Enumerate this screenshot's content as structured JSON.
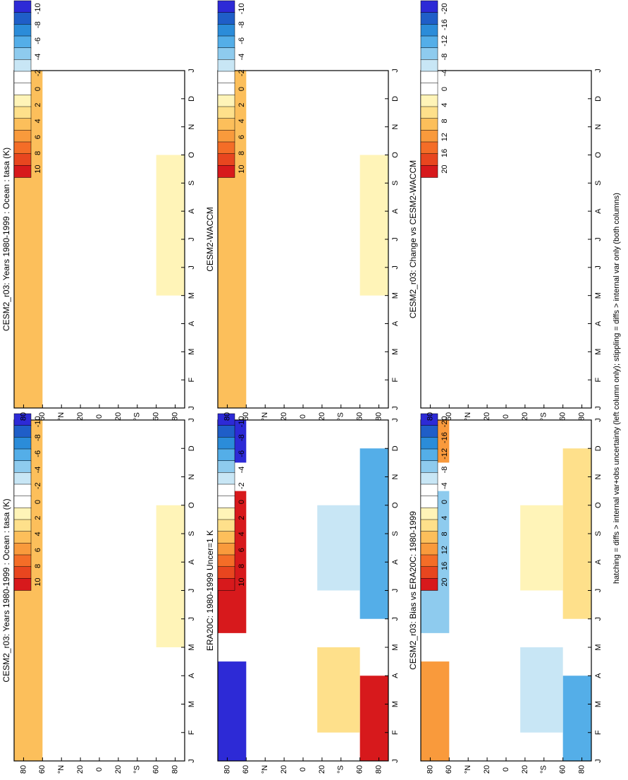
{
  "footer": "hatching = diffs > internal var+obs uncertainty (left column only); stippling = diffs > internal var only (both columns)",
  "chart_data": [
    {
      "type": "heatmap",
      "title": "CESM2_r03: Years 1980-1999 : Ocean : tasa (K)",
      "x_tick_labels": [
        "J",
        "F",
        "M",
        "A",
        "M",
        "J",
        "J",
        "A",
        "S",
        "O",
        "N",
        "D",
        "J"
      ],
      "y_tick_labels": [
        "80",
        "60",
        "°N",
        "20",
        "0",
        "20",
        "°S",
        "60",
        "80"
      ],
      "legend": {
        "tick_labels": [
          "10",
          "8",
          "6",
          "4",
          "2",
          "0",
          "-2",
          "-4",
          "-6",
          "-8",
          "-10"
        ]
      },
      "zones": [
        {
          "lat": [
            60,
            90
          ],
          "months": [
            [
              0,
              12
            ]
          ],
          "value": 4
        },
        {
          "lat": [
            -90,
            -60
          ],
          "months": [
            [
              4,
              9
            ]
          ],
          "value": 2
        }
      ]
    },
    {
      "type": "heatmap",
      "title": "CESM2_r03: Years 1980-1999 : Ocean : tasa (K)",
      "x_tick_labels": [
        "J",
        "F",
        "M",
        "A",
        "M",
        "J",
        "J",
        "A",
        "S",
        "O",
        "N",
        "D",
        "J"
      ],
      "y_tick_labels": [
        "80",
        "60",
        "°N",
        "20",
        "0",
        "20",
        "°S",
        "60",
        "80"
      ],
      "legend": {
        "tick_labels": [
          "10",
          "8",
          "6",
          "4",
          "2",
          "0",
          "-2",
          "-4",
          "-6",
          "-8",
          "-10"
        ]
      },
      "zones": [
        {
          "lat": [
            60,
            90
          ],
          "months": [
            [
              0,
              12
            ]
          ],
          "value": 4
        },
        {
          "lat": [
            -90,
            -60
          ],
          "months": [
            [
              4,
              9
            ]
          ],
          "value": 2
        }
      ]
    },
    {
      "type": "heatmap",
      "title": "ERA20C: 1980-1999 Uncer=1 K",
      "x_tick_labels": [
        "J",
        "F",
        "M",
        "A",
        "M",
        "J",
        "J",
        "A",
        "S",
        "O",
        "N",
        "D",
        "J"
      ],
      "y_tick_labels": [
        "80",
        "60",
        "°N",
        "20",
        "0",
        "20",
        "°S",
        "60",
        "80"
      ],
      "legend": {
        "tick_labels": [
          "10",
          "8",
          "6",
          "4",
          "2",
          "0",
          "-2",
          "-4",
          "-6",
          "-8",
          "-10"
        ]
      },
      "zones": [
        {
          "lat": [
            60,
            90
          ],
          "months": [
            [
              0,
              3.5
            ],
            [
              10.5,
              12
            ]
          ],
          "value": -9
        },
        {
          "lat": [
            60,
            90
          ],
          "months": [
            [
              4.5,
              9.5
            ]
          ],
          "value": 9
        },
        {
          "lat": [
            -90,
            -60
          ],
          "months": [
            [
              0,
              3
            ]
          ],
          "value": 9
        },
        {
          "lat": [
            -90,
            -60
          ],
          "months": [
            [
              5,
              11
            ]
          ],
          "value": -5
        },
        {
          "lat": [
            -60,
            -15
          ],
          "months": [
            [
              1,
              4
            ]
          ],
          "value": 3
        },
        {
          "lat": [
            -60,
            -15
          ],
          "months": [
            [
              6,
              9
            ]
          ],
          "value": -3
        }
      ]
    },
    {
      "type": "heatmap",
      "title": "CESM2-WACCM",
      "x_tick_labels": [
        "J",
        "F",
        "M",
        "A",
        "M",
        "J",
        "J",
        "A",
        "S",
        "O",
        "N",
        "D",
        "J"
      ],
      "y_tick_labels": [
        "80",
        "60",
        "°N",
        "20",
        "0",
        "20",
        "°S",
        "60",
        "80"
      ],
      "legend": {
        "tick_labels": [
          "10",
          "8",
          "6",
          "4",
          "2",
          "0",
          "-2",
          "-4",
          "-6",
          "-8",
          "-10"
        ]
      },
      "zones": [
        {
          "lat": [
            60,
            90
          ],
          "months": [
            [
              0,
              12
            ]
          ],
          "value": 4
        },
        {
          "lat": [
            -90,
            -60
          ],
          "months": [
            [
              4,
              9
            ]
          ],
          "value": 2
        }
      ]
    },
    {
      "type": "heatmap",
      "title": "CESM2_r03: Bias vs ERA20C: 1980-1999",
      "x_tick_labels": [
        "J",
        "F",
        "M",
        "A",
        "M",
        "J",
        "J",
        "A",
        "S",
        "O",
        "N",
        "D",
        "J"
      ],
      "y_tick_labels": [
        "80",
        "60",
        "°N",
        "20",
        "0",
        "20",
        "°S",
        "60",
        "80"
      ],
      "legend": {
        "tick_labels": [
          "20",
          "16",
          "12",
          "8",
          "4",
          "0",
          "-4",
          "-8",
          "-12",
          "-16",
          "-20"
        ]
      },
      "zones": [
        {
          "lat": [
            60,
            90
          ],
          "months": [
            [
              0,
              3.5
            ],
            [
              10.5,
              12
            ]
          ],
          "value": 12
        },
        {
          "lat": [
            60,
            90
          ],
          "months": [
            [
              4.5,
              9.5
            ]
          ],
          "value": -8
        },
        {
          "lat": [
            -90,
            -60
          ],
          "months": [
            [
              0,
              3
            ]
          ],
          "value": -10
        },
        {
          "lat": [
            -90,
            -60
          ],
          "months": [
            [
              5,
              11
            ]
          ],
          "value": 6
        },
        {
          "lat": [
            -60,
            -15
          ],
          "months": [
            [
              1,
              4
            ]
          ],
          "value": -6
        },
        {
          "lat": [
            -60,
            -15
          ],
          "months": [
            [
              6,
              9
            ]
          ],
          "value": 4
        }
      ]
    },
    {
      "type": "heatmap",
      "title": "CESM2_r03: Change vs CESM2-WACCM",
      "x_tick_labels": [
        "J",
        "F",
        "M",
        "A",
        "M",
        "J",
        "J",
        "A",
        "S",
        "O",
        "N",
        "D",
        "J"
      ],
      "y_tick_labels": [
        "80",
        "60",
        "°N",
        "20",
        "0",
        "20",
        "°S",
        "60",
        "80"
      ],
      "legend": {
        "tick_labels": [
          "20",
          "16",
          "12",
          "8",
          "4",
          "0",
          "-4",
          "-8",
          "-12",
          "-16",
          "-20"
        ]
      },
      "zones": []
    }
  ]
}
